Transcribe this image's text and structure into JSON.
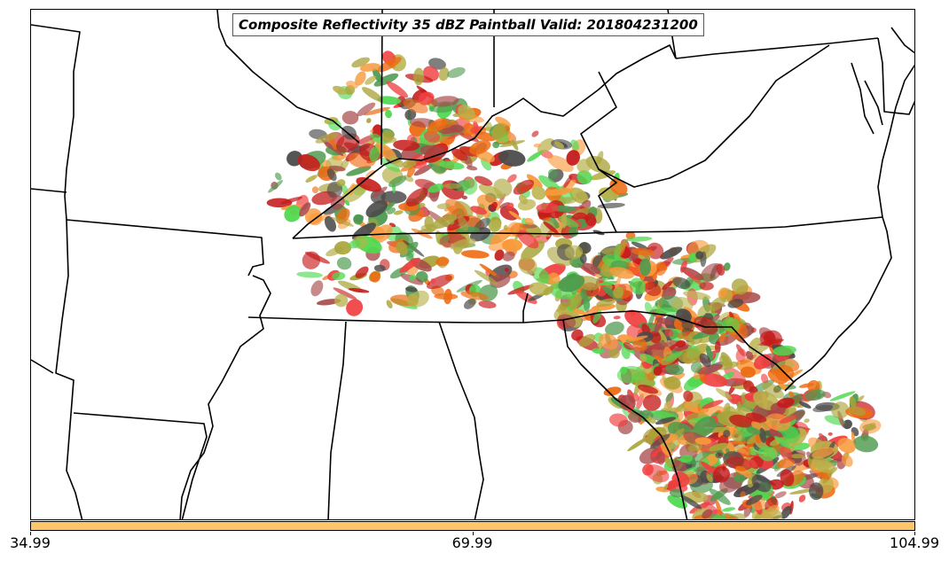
{
  "title": "Composite Reflectivity 35 dBZ Paintball Valid: 201804231200",
  "colorbar": {
    "color": "#fdc66b",
    "ticks": [
      "34.99",
      "69.99",
      "104.99"
    ]
  },
  "palette": {
    "light_green": "#4fd84f",
    "dark_green": "#4e9a4e",
    "olive": "#a9a43a",
    "khaki": "#b9b24c",
    "orange": "#f89a3c",
    "dark_orange": "#ee6b12",
    "red": "#f04040",
    "dark_red": "#c51a1a",
    "maroon": "#a84848",
    "gray": "#4a4a4a"
  }
}
